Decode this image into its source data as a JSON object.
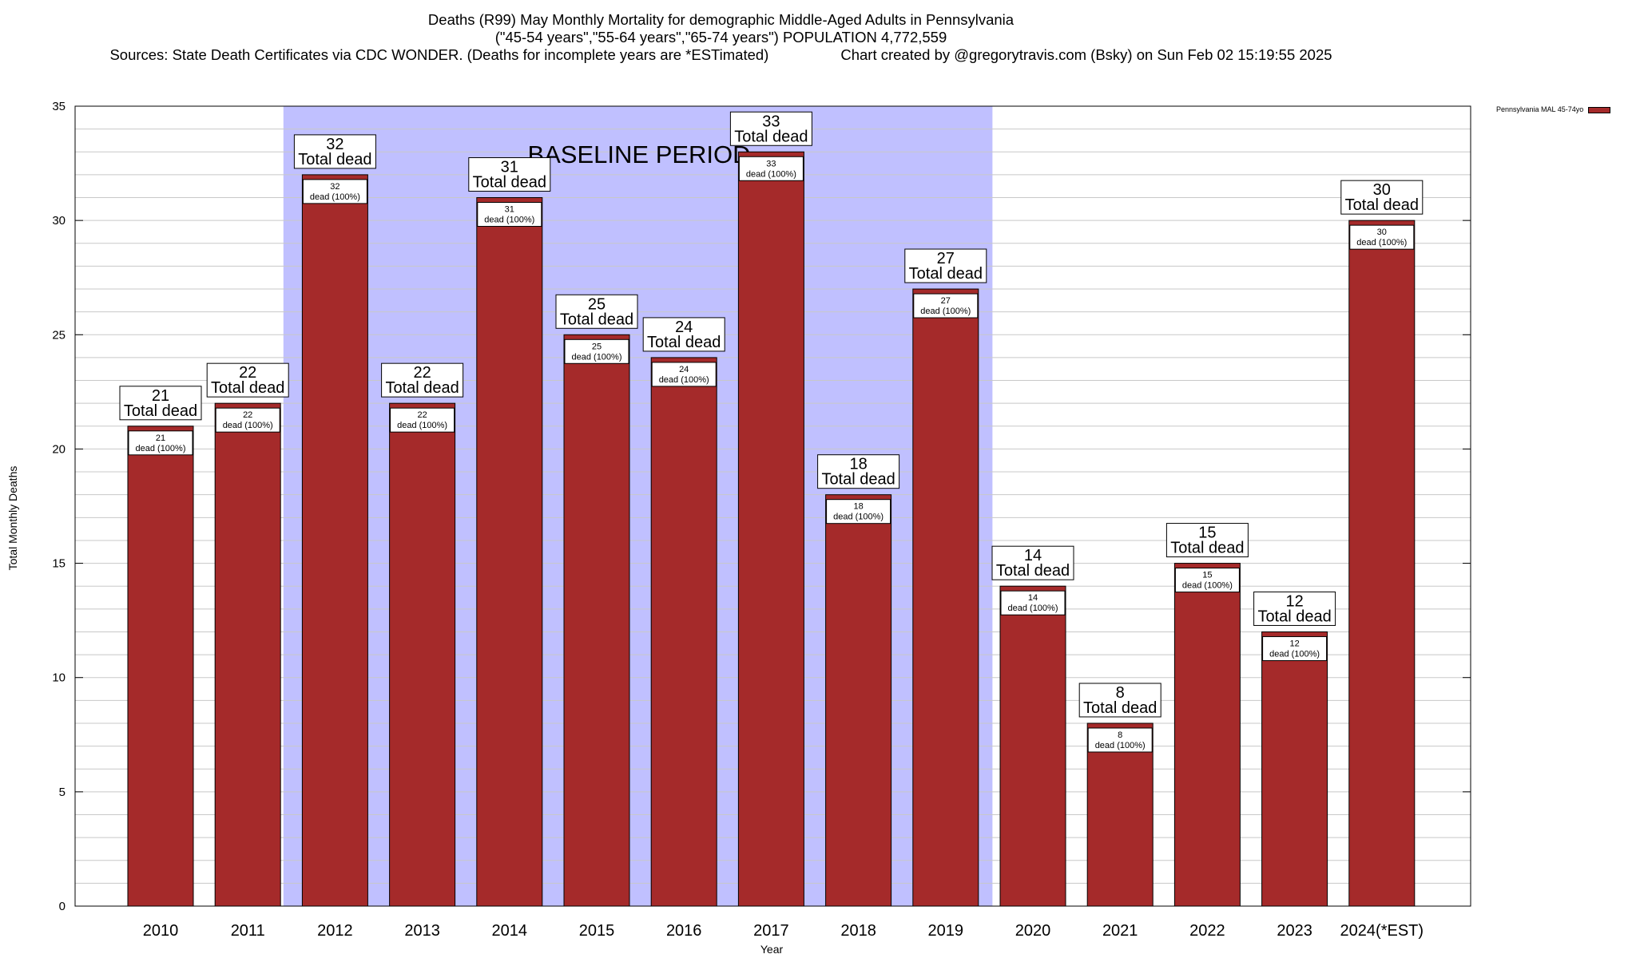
{
  "title_lines": [
    "Deaths (R99) May Monthly Mortality for demographic Middle-Aged Adults in Pennsylvania",
    "(\"45-54 years\",\"55-64 years\",\"65-74 years\") POPULATION 4,772,559"
  ],
  "source_text": "Sources: State Death Certificates via CDC WONDER. (Deaths for incomplete years are *ESTimated)",
  "credit_text": "Chart created by @gregorytravis.com (Bsky) on Sun Feb 02 15:19:55 2025",
  "legend_label": "Pennsylvania MAL 45-74yo",
  "colors": {
    "bar": "#a52a2a",
    "baseline": "#c0c0ff",
    "grid": "#c8c8c8"
  },
  "chart_data": {
    "type": "bar",
    "categories": [
      "2010",
      "2011",
      "2012",
      "2013",
      "2014",
      "2015",
      "2016",
      "2017",
      "2018",
      "2019",
      "2020",
      "2021",
      "2022",
      "2023",
      "2024(*EST)"
    ],
    "values": [
      21,
      22,
      32,
      22,
      31,
      25,
      24,
      33,
      18,
      27,
      14,
      8,
      15,
      12,
      30
    ],
    "series": [
      {
        "name": "Pennsylvania MAL 45-74yo",
        "values": [
          21,
          22,
          32,
          22,
          31,
          25,
          24,
          33,
          18,
          27,
          14,
          8,
          15,
          12,
          30
        ]
      }
    ],
    "xlabel": "Year",
    "ylabel": "Total Monthly Deaths",
    "ylim": [
      0,
      35
    ],
    "yticks": [
      0,
      5,
      10,
      15,
      20,
      25,
      30,
      35
    ],
    "grid": true,
    "legend_position": "top-right",
    "baseline_period": {
      "label": "BASELINE PERIOD",
      "from": "2012",
      "to": "2019"
    },
    "total_label_suffix": "Total dead",
    "inner_label_suffix": "dead (100%)"
  }
}
